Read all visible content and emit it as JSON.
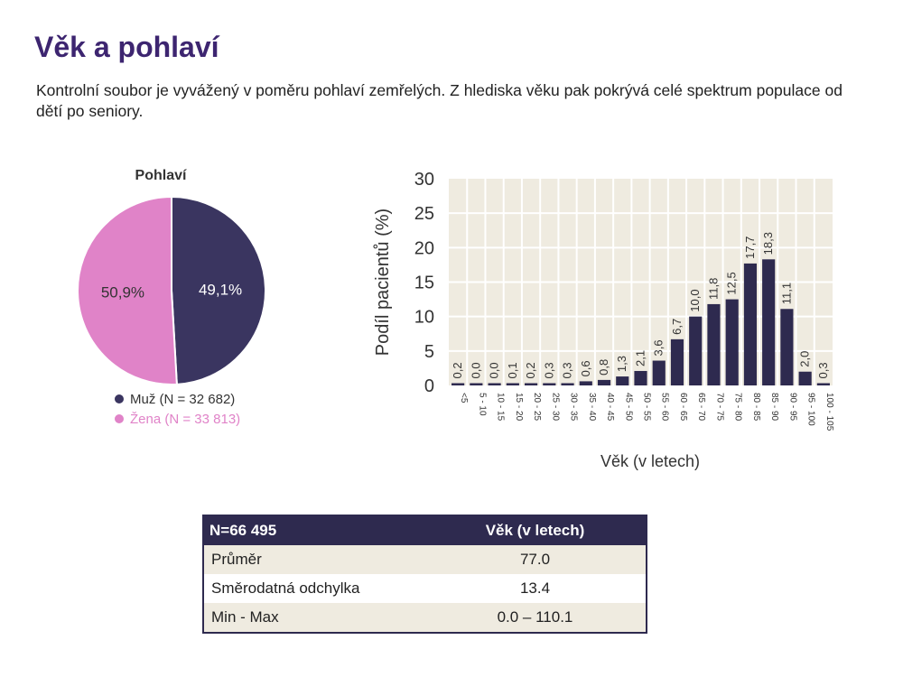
{
  "page": {
    "title": "Věk a pohlaví",
    "intro": "Kontrolní soubor je vyvážený v poměru pohlaví zemřelých. Z hlediska věku pak pokrývá celé spektrum populace od dětí po seniory."
  },
  "colors": {
    "title": "#3d2570",
    "male": "#3a3560",
    "female": "#e083c8",
    "bar": "#2e2a4f",
    "plot_bg": "#efebe0",
    "table_header": "#2e2a4f",
    "table_shade": "#efebe0"
  },
  "chart_data": [
    {
      "type": "pie",
      "title": "Pohlaví",
      "slices": [
        {
          "label": "Muž (N = 32 682)",
          "value": 49.1,
          "value_label": "49,1%",
          "color": "#3a3560",
          "text_color": "#ffffff"
        },
        {
          "label": "Žena (N = 33 813)",
          "value": 50.9,
          "value_label": "50,9%",
          "color": "#e083c8",
          "text_color": "#333333"
        }
      ],
      "legend_position": "bottom"
    },
    {
      "type": "bar",
      "xlabel": "Věk (v letech)",
      "ylabel": "Podíl pacientů (%)",
      "ylim": [
        0,
        30
      ],
      "yticks": [
        0,
        5,
        10,
        15,
        20,
        25,
        30
      ],
      "grid": true,
      "categories": [
        "<5",
        "5 - 10",
        "10 - 15",
        "15 - 20",
        "20 - 25",
        "25 - 30",
        "30 - 35",
        "35 - 40",
        "40 - 45",
        "45 - 50",
        "50 - 55",
        "55 - 60",
        "60 - 65",
        "65 - 70",
        "70 - 75",
        "75 - 80",
        "80 - 85",
        "85 - 90",
        "90 - 95",
        "95 - 100",
        "100 - 105"
      ],
      "values": [
        0.2,
        0.0,
        0.0,
        0.1,
        0.2,
        0.3,
        0.3,
        0.6,
        0.8,
        1.3,
        2.1,
        3.6,
        6.7,
        10.0,
        11.8,
        12.5,
        17.7,
        18.3,
        11.1,
        2.0,
        0.3
      ],
      "value_labels": [
        "0,2",
        "0,0",
        "0,0",
        "0,1",
        "0,2",
        "0,3",
        "0,3",
        "0,6",
        "0,8",
        "1,3",
        "2,1",
        "3,6",
        "6,7",
        "10,0",
        "11,8",
        "12,5",
        "17,7",
        "18,3",
        "11,1",
        "2,0",
        "0,3"
      ]
    }
  ],
  "table": {
    "header": [
      "N=66 495",
      "Věk (v letech)"
    ],
    "rows": [
      [
        "Průměr",
        "77.0"
      ],
      [
        "Směrodatná odchylka",
        "13.4"
      ],
      [
        "Min - Max",
        "0.0 – 110.1"
      ]
    ]
  }
}
